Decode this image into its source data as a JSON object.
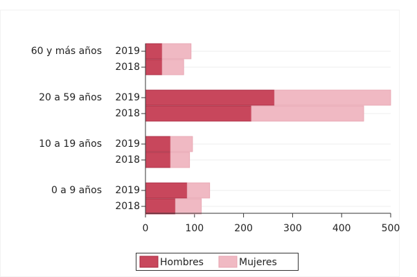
{
  "chart_data": {
    "type": "stacked-barh",
    "groups": [
      "60 y más años",
      "20 a 59 años",
      "10 a 19 años",
      "0 a 9 años"
    ],
    "categories": [
      "2019",
      "2018",
      "2019",
      "2018",
      "2019",
      "2018",
      "2019",
      "2018"
    ],
    "series": [
      {
        "name": "Hombres",
        "color": "#c8475c",
        "values": [
          34,
          34,
          263,
          216,
          51,
          51,
          85,
          61
        ]
      },
      {
        "name": "Mujeres",
        "color": "#f0b9c3",
        "values": [
          59,
          44,
          237,
          229,
          45,
          39,
          46,
          53
        ]
      }
    ],
    "xlim": [
      0,
      500
    ],
    "xticks": [
      0,
      100,
      200,
      300,
      400,
      500
    ],
    "grid": true
  }
}
